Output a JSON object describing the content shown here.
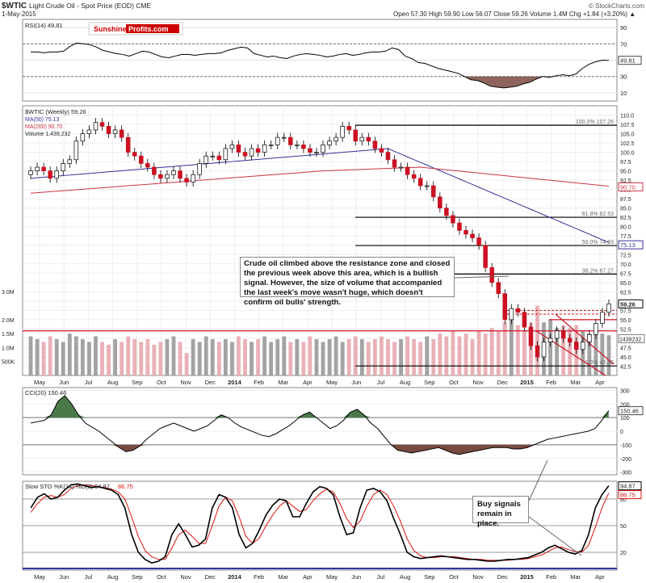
{
  "header": {
    "symbol": "$WTIC",
    "name": "Light Crude Oil - Spot Price (EOD)",
    "exchange": "CME",
    "date": "1-May-2015",
    "copyright": "© StockCharts.com",
    "ohlc": "Open 57.30  High 59.90  Low 56.07  Close 59.26  Volume 1.4M  Chg +1.84 (+3.20%) ▲"
  },
  "brand": {
    "part1": "Sunshine",
    "part2": "Profits.com",
    "color1": "#cc0000",
    "color2": "#ffffff"
  },
  "annotations": {
    "box1": "Crude oil climbed above the resistance zone and closed the previous week above this area, which is a bullish signal. However, the size of volume that accompanied the last week's move wasn't huge, which doesn't confirm oil bulls' strength.",
    "box2": "Buy signals remain in place."
  },
  "colors": {
    "up": "#ffffff",
    "down": "#cc1122",
    "ma50": "#333399",
    "ma200": "#cc3344",
    "stoK": "#000000",
    "stoD": "#dd1111",
    "fill_pos": "#4a7a4a",
    "fill_neg": "#7a4a40",
    "vol_up": "#999999",
    "vol_down": "#e7a8ae"
  },
  "chart_data": [
    {
      "panel": "rsi",
      "type": "line",
      "title": "RSI(14) 49.81",
      "yticks": [
        10,
        30,
        50,
        70,
        90
      ],
      "ylim": [
        0,
        100
      ],
      "bands": [
        30,
        70
      ],
      "last_value": "49.81",
      "values": [
        60,
        60,
        59,
        60,
        60,
        61,
        67,
        71,
        70,
        69,
        66,
        62,
        60,
        58,
        57,
        55,
        58,
        61,
        60,
        57,
        54,
        53,
        55,
        57,
        57,
        56,
        57,
        58,
        58,
        59,
        62,
        64,
        66,
        65,
        58,
        56,
        54,
        55,
        53,
        52,
        55,
        57,
        58,
        57,
        56,
        54,
        55,
        57,
        58,
        56,
        57,
        59,
        60,
        60,
        61,
        65,
        63,
        55,
        52,
        47,
        46,
        43,
        40,
        38,
        36,
        34,
        30,
        26,
        25,
        22,
        18,
        17,
        16,
        17,
        18,
        21,
        23,
        27,
        30,
        29,
        31,
        32,
        31,
        33,
        40,
        45,
        48,
        50,
        49.81
      ]
    },
    {
      "panel": "price",
      "type": "candlestick",
      "title": "$WTIC (Weekly) 59.26",
      "legend": [
        "MA(50) 75.13",
        "MA(200) 90.70",
        "Volume 1,439,232"
      ],
      "x_labels": [
        "May",
        "Jun",
        "Jul",
        "Aug",
        "Sep",
        "Oct",
        "Nov",
        "Dec",
        "2014",
        "Feb",
        "Mar",
        "Apr",
        "May",
        "Jun",
        "Jul",
        "Aug",
        "Sep",
        "Oct",
        "Nov",
        "Dec",
        "2015",
        "Feb",
        "Mar",
        "Apr"
      ],
      "ylim": [
        40,
        112.5
      ],
      "yticks": [
        42.5,
        45.0,
        47.5,
        50.0,
        52.5,
        55.0,
        57.5,
        60.0,
        62.5,
        65.0,
        67.5,
        70.0,
        72.5,
        75.0,
        77.5,
        80.0,
        82.5,
        85.0,
        87.5,
        90.0,
        92.5,
        95.0,
        97.5,
        100.0,
        102.5,
        105.0,
        107.5,
        110.0
      ],
      "ma_labels": {
        "ma50": "75.13",
        "ma200": "90.70",
        "last": "59.26"
      },
      "fib_levels": [
        {
          "label": "100.0% 107.26",
          "value": 107.26
        },
        {
          "label": "61.8% 82.53",
          "value": 82.53
        },
        {
          "label": "50.0% 74.93",
          "value": 74.93
        },
        {
          "label": "38.2% 67.27",
          "value": 67.27
        },
        {
          "label": "0.0% 42.56",
          "value": 42.56
        }
      ],
      "extra_levels": [
        87.5,
        56.5,
        55.0,
        53.0,
        52.0
      ],
      "close": [
        95,
        96,
        95,
        93,
        95,
        97,
        98,
        103,
        105,
        106,
        108,
        107,
        105,
        106,
        104,
        100,
        99,
        97,
        96,
        94,
        93,
        94,
        95,
        93,
        92,
        94,
        97,
        99,
        99,
        98,
        101,
        102,
        100,
        99,
        101,
        100,
        102,
        102,
        104,
        104,
        102,
        102,
        101,
        100,
        100,
        102,
        103,
        104,
        107,
        106,
        103,
        104,
        103,
        101,
        100,
        98,
        96,
        96,
        94,
        93,
        91,
        91,
        88,
        85,
        83,
        81,
        79,
        78,
        77,
        75,
        69,
        65,
        62,
        55,
        58,
        57,
        53,
        48,
        45,
        49,
        50,
        52,
        50,
        49,
        47,
        49,
        51,
        54,
        57,
        59.26
      ],
      "volume_ticks": [
        "3.0M",
        "2.0M",
        "1.5M",
        "1.0M",
        "500K"
      ],
      "volume_last": "1439232",
      "volume": [
        1.4,
        1.3,
        1.2,
        1.4,
        1.3,
        1.2,
        1.5,
        1.4,
        1.3,
        1.2,
        1.4,
        1.2,
        1.1,
        1.3,
        1.2,
        1.4,
        1.3,
        1.2,
        1.3,
        1.1,
        1.2,
        1.3,
        1.4,
        1.2,
        0.8,
        1.3,
        1.2,
        1.4,
        1.3,
        1.2,
        1.3,
        1.2,
        1.4,
        1.3,
        1.2,
        1.3,
        1.4,
        1.2,
        1.3,
        1.4,
        1.2,
        1.3,
        1.2,
        1.4,
        1.3,
        1.2,
        1.3,
        1.4,
        1.2,
        1.3,
        1.4,
        1.3,
        1.2,
        1.3,
        1.4,
        1.3,
        1.2,
        1.3,
        1.4,
        1.3,
        1.2,
        1.4,
        1.3,
        1.5,
        1.4,
        1.6,
        1.4,
        1.5,
        1.3,
        1.6,
        1.5,
        1.7,
        1.6,
        1.9,
        2.2,
        1.8,
        1.6,
        1.9,
        2.5,
        1.9,
        2.0,
        1.7,
        1.8,
        1.7,
        1.8,
        1.6,
        1.5,
        1.6,
        1.5,
        1.44
      ]
    },
    {
      "panel": "cci",
      "type": "line",
      "title": "CCI(20) 150.46",
      "yticks": [
        -300,
        -200,
        -100,
        0,
        100,
        200,
        300
      ],
      "ylim": [
        -320,
        320
      ],
      "bands": [
        -100,
        100
      ],
      "last_value": "150.46",
      "values": [
        60,
        70,
        80,
        120,
        220,
        260,
        200,
        120,
        60,
        30,
        0,
        -40,
        -80,
        -120,
        -150,
        -140,
        -110,
        -60,
        -20,
        20,
        40,
        60,
        40,
        20,
        0,
        20,
        40,
        80,
        120,
        100,
        60,
        30,
        10,
        -10,
        -30,
        -40,
        -20,
        10,
        40,
        80,
        120,
        140,
        100,
        60,
        20,
        40,
        80,
        140,
        160,
        120,
        60,
        20,
        -40,
        -100,
        -140,
        -150,
        -160,
        -150,
        -140,
        -130,
        -120,
        -140,
        -160,
        -170,
        -160,
        -150,
        -140,
        -130,
        -120,
        -120,
        -120,
        -130,
        -130,
        -120,
        -100,
        -80,
        -60,
        -50,
        -40,
        -30,
        -20,
        -10,
        0,
        20,
        80,
        150.46
      ]
    },
    {
      "panel": "stochastic",
      "type": "line",
      "title": "Slow STO %K(14) %D(3) 94.87, 86.75",
      "series_names": [
        "%K(14)",
        "%D(3)"
      ],
      "yticks": [
        20,
        50,
        80
      ],
      "ylim": [
        0,
        100
      ],
      "bands": [
        20,
        80
      ],
      "last_values": {
        "k": "94.87",
        "d": "86.75"
      },
      "k": [
        70,
        82,
        86,
        80,
        82,
        90,
        96,
        97,
        95,
        93,
        94,
        92,
        90,
        85,
        70,
        40,
        20,
        12,
        8,
        10,
        15,
        40,
        52,
        40,
        26,
        28,
        35,
        70,
        85,
        82,
        70,
        40,
        25,
        30,
        45,
        62,
        73,
        80,
        78,
        60,
        60,
        75,
        88,
        94,
        92,
        85,
        60,
        40,
        42,
        70,
        90,
        92,
        88,
        78,
        58,
        40,
        20,
        15,
        13,
        14,
        15,
        16,
        15,
        14,
        13,
        12,
        12,
        11,
        10,
        10,
        11,
        12,
        12,
        13,
        14,
        17,
        20,
        25,
        28,
        24,
        20,
        18,
        22,
        40,
        70,
        85,
        94.87
      ],
      "d": [
        65,
        75,
        82,
        84,
        82,
        85,
        92,
        95,
        96,
        95,
        94,
        93,
        91,
        88,
        80,
        60,
        38,
        22,
        15,
        12,
        12,
        25,
        40,
        45,
        38,
        30,
        30,
        50,
        72,
        82,
        78,
        60,
        38,
        30,
        36,
        50,
        62,
        72,
        78,
        72,
        66,
        68,
        78,
        86,
        91,
        88,
        75,
        58,
        48,
        55,
        72,
        85,
        90,
        85,
        72,
        55,
        35,
        22,
        16,
        14,
        14,
        15,
        15,
        15,
        14,
        13,
        12,
        12,
        11,
        11,
        11,
        11,
        12,
        12,
        13,
        15,
        17,
        21,
        25,
        26,
        23,
        21,
        20,
        28,
        48,
        70,
        86.75
      ]
    }
  ]
}
